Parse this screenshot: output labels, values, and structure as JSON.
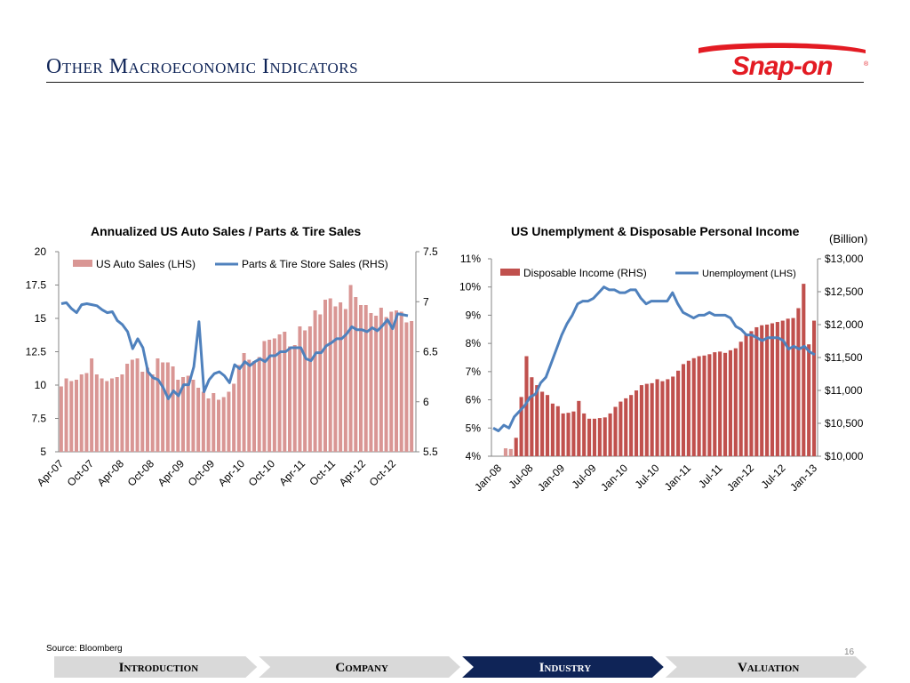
{
  "page": {
    "title": "Other Macroeconomic Indicators",
    "page_number": "16",
    "source": "Source: Bloomberg"
  },
  "logo": {
    "text": "Snap-on",
    "color": "#e31b23"
  },
  "colors": {
    "bar": "#d99694",
    "bar_dark": "#c0504d",
    "line": "#4f81bd",
    "axis": "#868686",
    "nav_active": "#0f2457",
    "nav_inactive": "#d9d9d9"
  },
  "nav": {
    "items": [
      "Introduction",
      "Company",
      "Industry",
      "Valuation"
    ],
    "active": "Industry"
  },
  "chart_data": [
    {
      "type": "bar",
      "title": "Annualized US Auto Sales / Parts & Tire Sales",
      "x_tick_labels": [
        "Apr-07",
        "Oct-07",
        "Apr-08",
        "Oct-08",
        "Apr-09",
        "Oct-09",
        "Apr-10",
        "Oct-10",
        "Apr-11",
        "Oct-11",
        "Apr-12",
        "Oct-12"
      ],
      "y_left": {
        "ylim": [
          5,
          20
        ],
        "ticks": [
          "5",
          "7.5",
          "10",
          "12.5",
          "15",
          "17.5",
          "20"
        ]
      },
      "y_right": {
        "ylim": [
          5.5,
          7.5
        ],
        "ticks": [
          "5.5",
          "6",
          "6.5",
          "7",
          "7.5"
        ]
      },
      "legend_position": "top",
      "series": [
        {
          "name": "US Auto Sales (LHS)",
          "type": "bar",
          "axis": "left",
          "values": [
            9.9,
            10.5,
            10.3,
            10.4,
            10.8,
            10.9,
            12.0,
            10.8,
            10.5,
            10.3,
            10.5,
            10.6,
            10.8,
            11.6,
            11.9,
            12.0,
            11.0,
            11.3,
            10.8,
            12.0,
            11.7,
            11.7,
            11.4,
            10.4,
            10.6,
            10.7,
            10.4,
            9.8,
            9.5,
            9.0,
            9.4,
            8.9,
            9.1,
            9.5,
            10.1,
            11.5,
            12.4,
            11.9,
            11.8,
            12.1,
            13.3,
            13.4,
            13.5,
            13.8,
            14.0,
            12.9,
            13.0,
            14.4,
            14.1,
            14.4,
            15.6,
            15.3,
            16.4,
            16.5,
            15.9,
            16.2,
            15.7,
            17.5,
            16.6,
            16.0,
            16.0,
            15.4,
            15.2,
            15.8,
            15.1,
            15.5,
            15.6,
            15.5,
            14.7,
            14.8
          ]
        },
        {
          "name": "Parts & Tire Store Sales (RHS)",
          "type": "line",
          "axis": "right",
          "values": [
            6.98,
            6.99,
            6.93,
            6.89,
            6.97,
            6.98,
            6.97,
            6.96,
            6.92,
            6.89,
            6.9,
            6.81,
            6.77,
            6.7,
            6.53,
            6.63,
            6.54,
            6.3,
            6.24,
            6.22,
            6.14,
            6.03,
            6.11,
            6.06,
            6.17,
            6.17,
            6.35,
            6.8,
            6.1,
            6.22,
            6.28,
            6.3,
            6.26,
            6.19,
            6.37,
            6.33,
            6.4,
            6.36,
            6.4,
            6.43,
            6.4,
            6.46,
            6.46,
            6.5,
            6.5,
            6.54,
            6.54,
            6.54,
            6.43,
            6.41,
            6.49,
            6.49,
            6.56,
            6.59,
            6.63,
            6.63,
            6.68,
            6.75,
            6.72,
            6.72,
            6.7,
            6.74,
            6.71,
            6.76,
            6.82,
            6.73,
            6.88,
            6.87,
            6.86
          ]
        }
      ]
    },
    {
      "type": "bar",
      "title": "US Unemplyment & Disposable Personal Income",
      "x_tick_labels": [
        "Jan-08",
        "Jul-08",
        "Jan-09",
        "Jul-09",
        "Jan-10",
        "Jul-10",
        "Jan-11",
        "Jul-11",
        "Jan-12",
        "Jul-12",
        "Jan-13"
      ],
      "y_left": {
        "ylim": [
          4,
          11
        ],
        "ticks": [
          "4%",
          "5%",
          "6%",
          "7%",
          "8%",
          "9%",
          "10%",
          "11%"
        ]
      },
      "y_right": {
        "label": "(Billion)",
        "ylim": [
          10000,
          13000
        ],
        "ticks": [
          "$10,000",
          "$10,500",
          "$11,000",
          "$11,500",
          "$12,000",
          "$12,500",
          "$13,000"
        ]
      },
      "legend_position": "top",
      "series": [
        {
          "name": "Disposable Income (RHS)",
          "type": "bar",
          "axis": "right",
          "values": [
            10120,
            10110,
            10280,
            10900,
            11520,
            11200,
            11080,
            10980,
            10930,
            10800,
            10760,
            10650,
            10660,
            10680,
            10840,
            10650,
            10570,
            10570,
            10580,
            10590,
            10650,
            10750,
            10830,
            10880,
            10930,
            11000,
            11080,
            11100,
            11110,
            11170,
            11140,
            11170,
            11210,
            11300,
            11400,
            11450,
            11490,
            11520,
            11530,
            11550,
            11580,
            11590,
            11570,
            11610,
            11640,
            11740,
            11860,
            11900,
            11960,
            11990,
            12000,
            12020,
            12040,
            12060,
            12090,
            12100,
            12250,
            12620,
            11700,
            12060
          ]
        },
        {
          "name": "Unemployment (LHS)",
          "type": "line",
          "axis": "left",
          "values": [
            5.0,
            4.9,
            5.1,
            5.0,
            5.4,
            5.6,
            5.8,
            6.1,
            6.2,
            6.6,
            6.8,
            7.3,
            7.8,
            8.3,
            8.7,
            9.0,
            9.4,
            9.5,
            9.5,
            9.6,
            9.8,
            10.0,
            9.9,
            9.9,
            9.8,
            9.8,
            9.9,
            9.9,
            9.6,
            9.4,
            9.5,
            9.5,
            9.5,
            9.5,
            9.8,
            9.4,
            9.1,
            9.0,
            8.9,
            9.0,
            9.0,
            9.1,
            9.0,
            9.0,
            9.0,
            8.9,
            8.6,
            8.5,
            8.3,
            8.3,
            8.2,
            8.1,
            8.2,
            8.2,
            8.2,
            8.1,
            7.8,
            7.9,
            7.8,
            7.9,
            7.7,
            7.6
          ]
        }
      ]
    }
  ]
}
